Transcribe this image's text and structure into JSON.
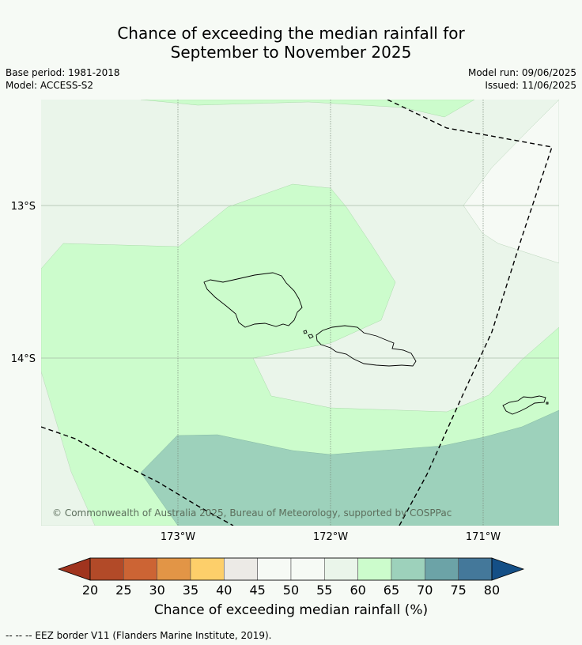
{
  "title": {
    "line1": "Chance of exceeding the median rainfall for",
    "line2": "September to November 2025"
  },
  "meta_left": {
    "base_period": "Base period: 1981-2018",
    "model": "Model: ACCESS-S2"
  },
  "meta_right": {
    "model_run": "Model run: 09/06/2025",
    "issued": "Issued: 11/06/2025"
  },
  "map": {
    "lat_labels": [
      "13°S",
      "14°S"
    ],
    "lon_labels": [
      "173°W",
      "172°W",
      "171°W"
    ],
    "copyright": "© Commonwealth of Australia 2025, Bureau of Meteorology, supported by COSPPac",
    "colors": {
      "40-50": "#eceae6",
      "50-55": "#f6faf5",
      "55-60": "#eaf5ea",
      "60-65": "#ccfccc",
      "65-70": "#9dd1bb"
    }
  },
  "colorbar": {
    "ticks": [
      "20",
      "25",
      "30",
      "35",
      "40",
      "45",
      "50",
      "55",
      "60",
      "65",
      "70",
      "75",
      "80"
    ],
    "colors": [
      "#a0341e",
      "#b24a28",
      "#cc6434",
      "#e29546",
      "#fdcf6a",
      "#eceae6",
      "#f6faf5",
      "#f6faf5",
      "#eaf5ea",
      "#ccfccc",
      "#9dd1bb",
      "#6ca3a7",
      "#44789a",
      "#144f86"
    ],
    "label": "Chance of exceeding median rainfall (%)"
  },
  "footnote": "--  --  -- EEZ border V11 (Flanders Marine Institute, 2019)."
}
